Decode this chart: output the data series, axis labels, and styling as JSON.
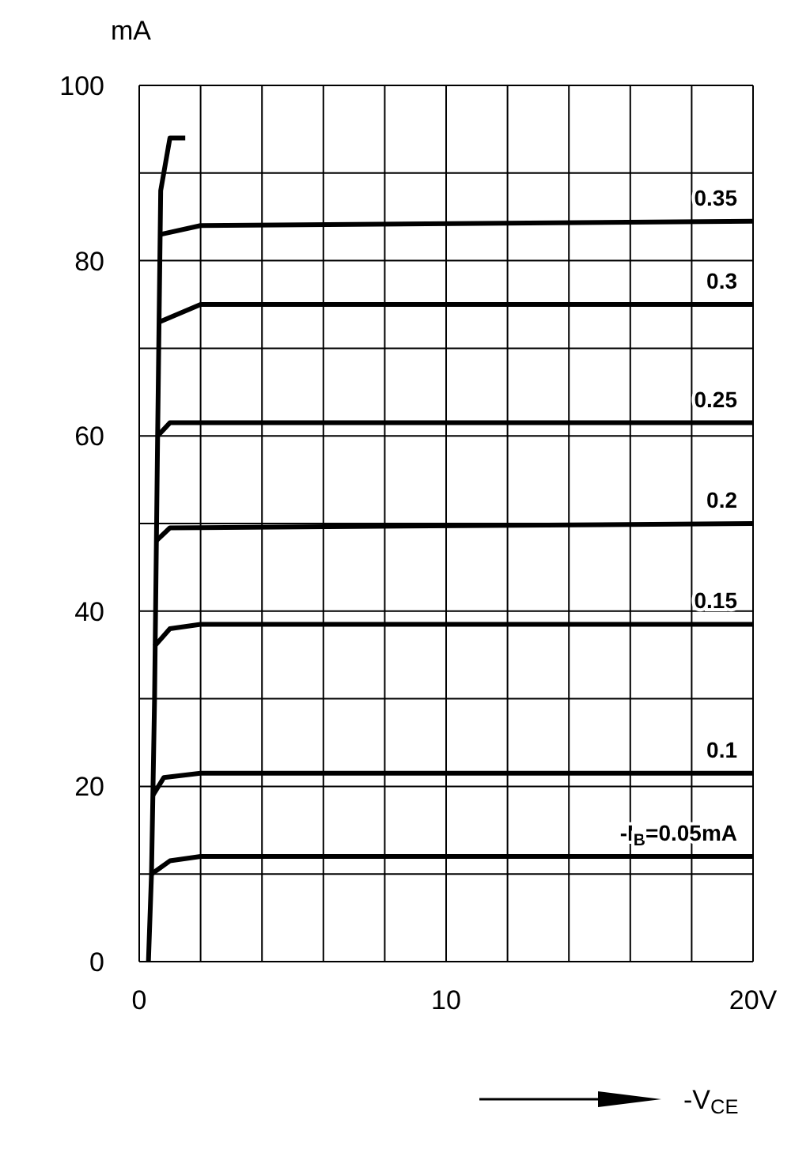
{
  "chart_data": {
    "type": "line",
    "xlabel": "-V$_{CE}$",
    "ylabel": "mA",
    "xlim": [
      0,
      20
    ],
    "ylim": [
      0,
      100
    ],
    "xticks": [
      0,
      {
        "value": 2,
        "label": null
      },
      {
        "value": 4,
        "label": null
      },
      {
        "value": 6,
        "label": null
      },
      {
        "value": 8,
        "label": null
      },
      10,
      {
        "value": 12,
        "label": null
      },
      {
        "value": 14,
        "label": null
      },
      {
        "value": 16,
        "label": null
      },
      {
        "value": 18,
        "label": null
      },
      {
        "value": 20,
        "label": "20V"
      }
    ],
    "yticks": [
      0,
      {
        "value": 10,
        "label": null
      },
      20,
      {
        "value": 30,
        "label": null
      },
      40,
      {
        "value": 50,
        "label": null
      },
      60,
      {
        "value": 70,
        "label": null
      },
      80,
      {
        "value": 90,
        "label": null
      },
      100
    ],
    "grid": true,
    "marker": "none",
    "line_style": "solid",
    "series": [
      {
        "color": "#000000",
        "x": [
          0.3,
          0.4,
          0.5,
          0.6,
          0.7,
          1,
          1.5
        ],
        "values": [
          0,
          10,
          30,
          60,
          88,
          94,
          94
        ]
      },
      {
        "name": "-I$_{B}$=0.05mA",
        "color": "#000000",
        "x": [
          0.4,
          1,
          2,
          20
        ],
        "values": [
          10,
          11.5,
          12,
          12
        ]
      },
      {
        "name": "0.1",
        "color": "#000000",
        "x": [
          0.45,
          0.8,
          2,
          20
        ],
        "values": [
          19,
          21,
          21.5,
          21.5
        ]
      },
      {
        "name": "0.15",
        "color": "#000000",
        "x": [
          0.5,
          1,
          2,
          20
        ],
        "values": [
          36,
          38,
          38.5,
          38.5
        ]
      },
      {
        "name": "0.2",
        "color": "#000000",
        "x": [
          0.55,
          1,
          20
        ],
        "values": [
          48,
          49.5,
          50
        ]
      },
      {
        "name": "0.25",
        "color": "#000000",
        "x": [
          0.6,
          1,
          20
        ],
        "values": [
          60,
          61.5,
          61.5
        ]
      },
      {
        "name": "0.3",
        "color": "#000000",
        "x": [
          0.65,
          2,
          20
        ],
        "values": [
          73,
          75,
          75
        ]
      },
      {
        "name": "0.35",
        "color": "#000000",
        "x": [
          0.7,
          2,
          20
        ],
        "values": [
          83,
          84,
          84.5
        ]
      }
    ]
  }
}
